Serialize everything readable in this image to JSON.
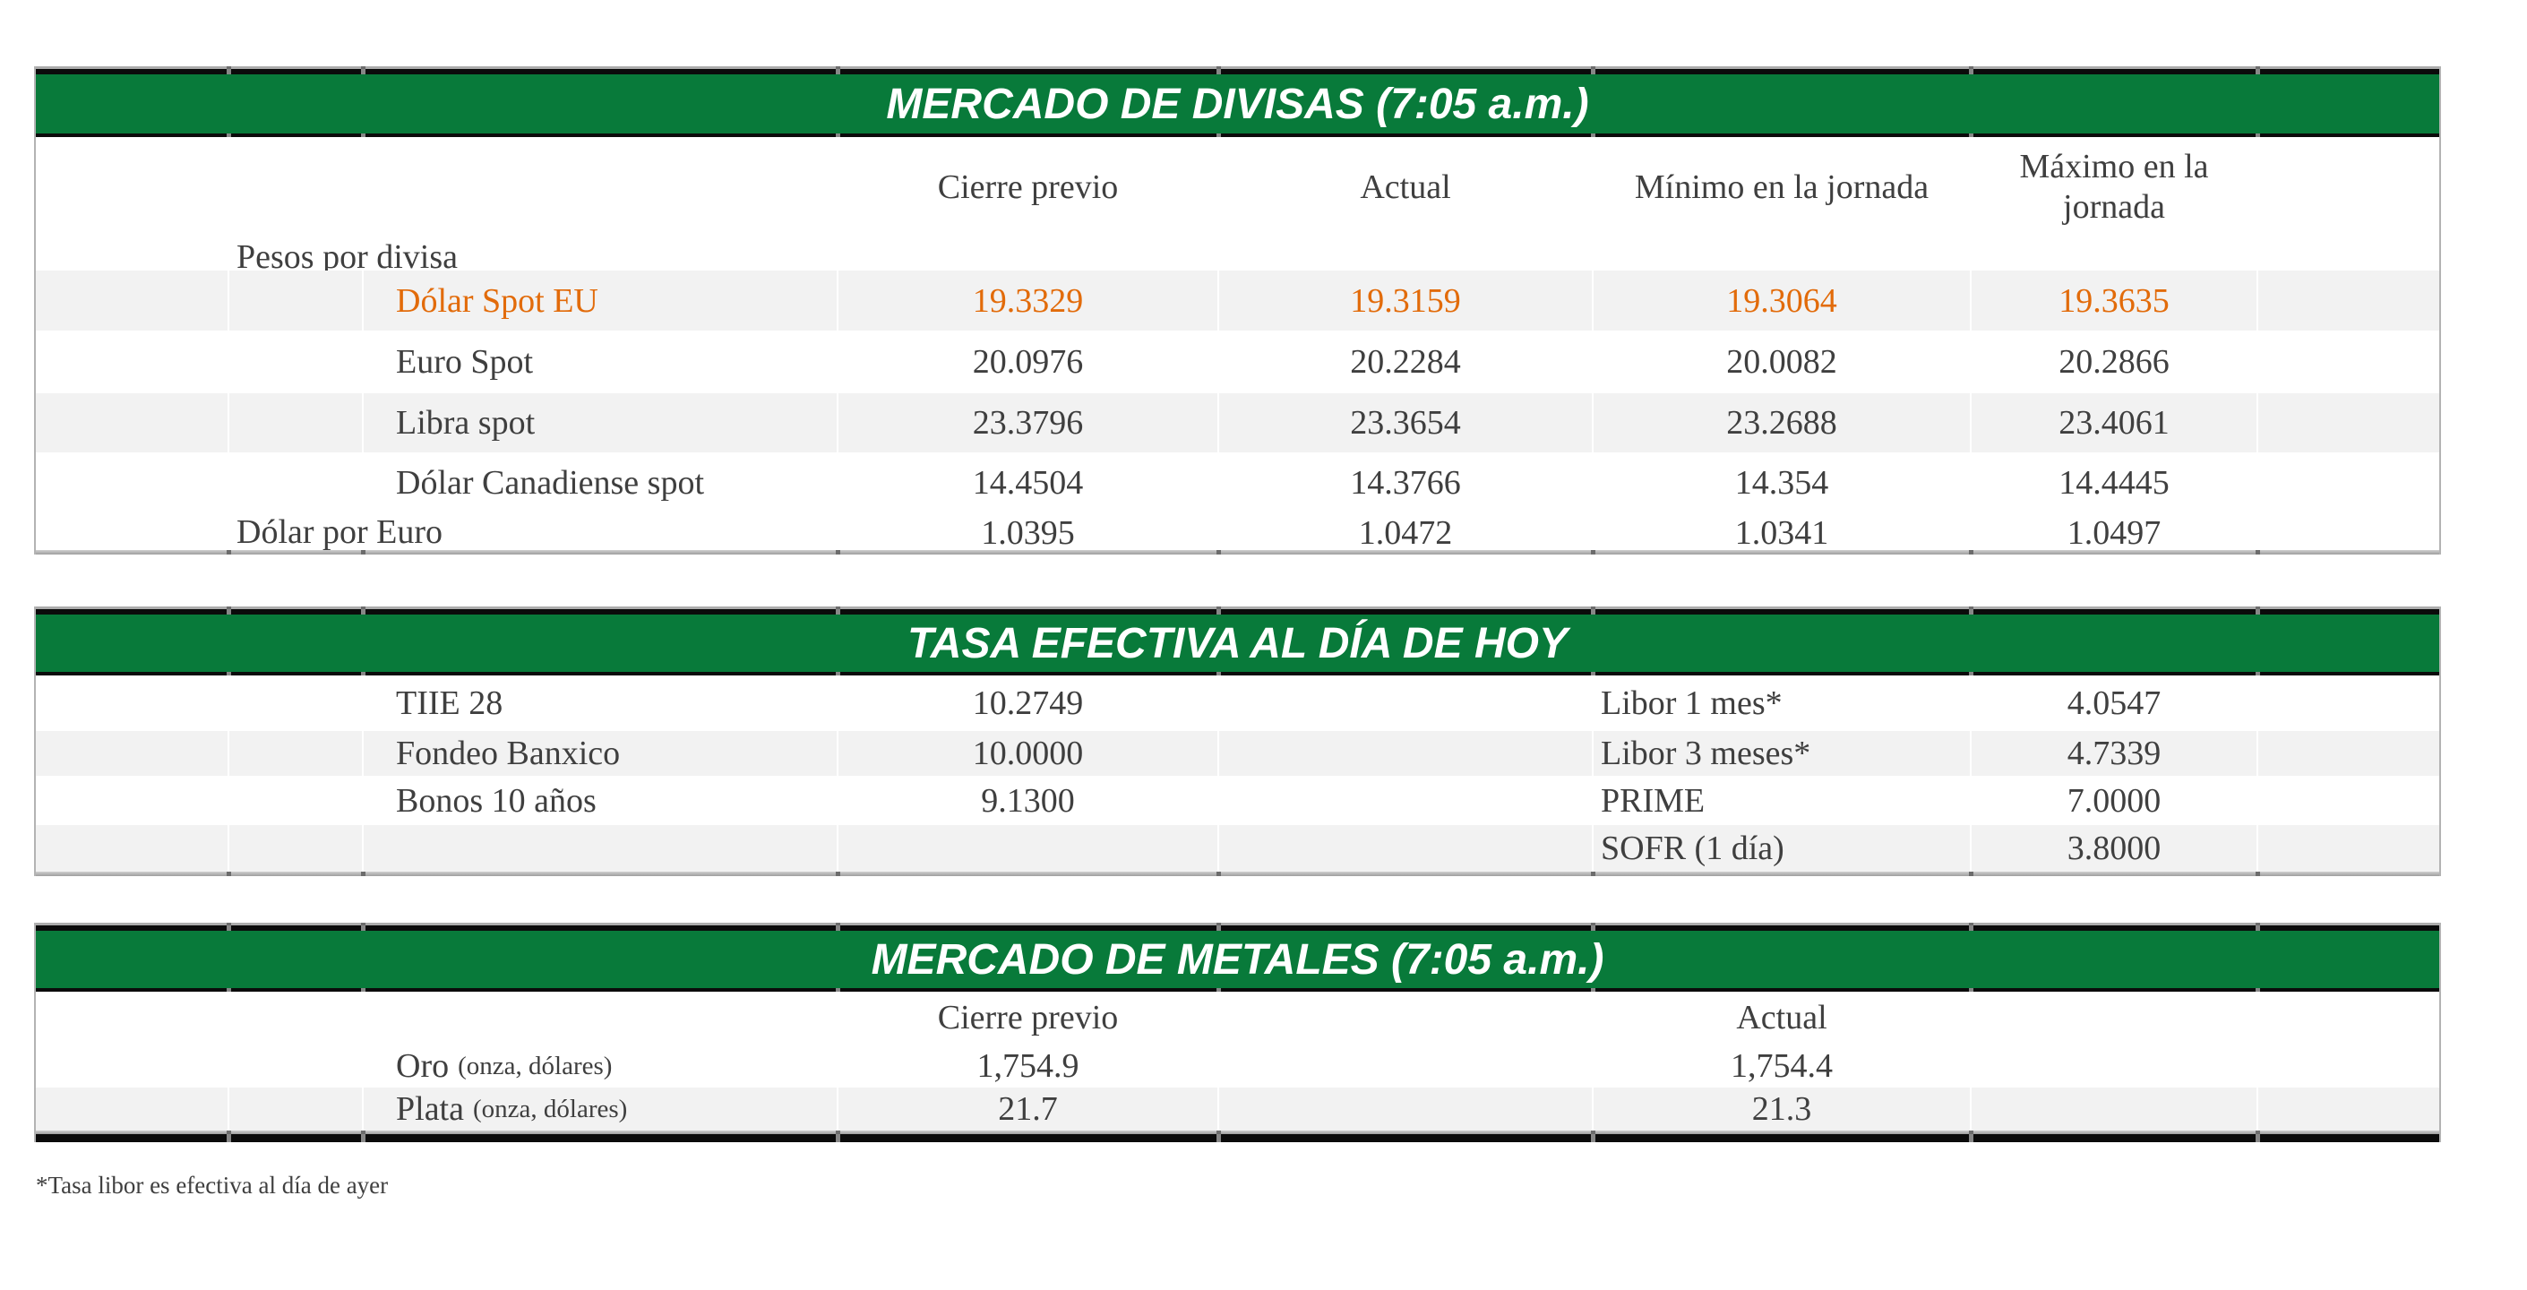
{
  "colors": {
    "header_green": "#087A3A",
    "highlight_orange": "#E26B0A",
    "row_stripe": "#F2F2F2",
    "text": "#3F3F3F"
  },
  "divisas": {
    "title": "MERCADO DE DIVISAS (7:05 a.m.)",
    "columns": [
      "Cierre previo",
      "Actual",
      "Mínimo en la jornada",
      "Máximo en la jornada"
    ],
    "group_label": "Pesos por divisa",
    "rows": [
      {
        "label": "Dólar Spot EU",
        "values": [
          "19.3329",
          "19.3159",
          "19.3064",
          "19.3635"
        ]
      },
      {
        "label": "Euro Spot",
        "values": [
          "20.0976",
          "20.2284",
          "20.0082",
          "20.2866"
        ]
      },
      {
        "label": "Libra spot",
        "values": [
          "23.3796",
          "23.3654",
          "23.2688",
          "23.4061"
        ]
      },
      {
        "label": "Dólar Canadiense spot",
        "values": [
          "14.4504",
          "14.3766",
          "14.354",
          "14.4445"
        ]
      },
      {
        "label": "Dólar por Euro",
        "values": [
          "1.0395",
          "1.0472",
          "1.0341",
          "1.0497"
        ]
      }
    ]
  },
  "tasas": {
    "title": "TASA EFECTIVA AL DÍA DE HOY",
    "rows": [
      {
        "left_label": "TIIE 28",
        "left_value": "10.2749",
        "right_label": "Libor 1 mes*",
        "right_value": "4.0547"
      },
      {
        "left_label": "Fondeo Banxico",
        "left_value": "10.0000",
        "right_label": "Libor 3 meses*",
        "right_value": "4.7339"
      },
      {
        "left_label": "Bonos 10 años",
        "left_value": "9.1300",
        "right_label": "PRIME",
        "right_value": "7.0000"
      },
      {
        "left_label": "",
        "left_value": "",
        "right_label": "SOFR (1 día)",
        "right_value": "3.8000"
      }
    ]
  },
  "metales": {
    "title": "MERCADO DE METALES (7:05 a.m.)",
    "columns": [
      "Cierre previo",
      "Actual"
    ],
    "rows": [
      {
        "label": "Oro",
        "label_note": "(onza, dólares)",
        "values": [
          "1,754.9",
          "1,754.4"
        ]
      },
      {
        "label": "Plata",
        "label_note": "(onza, dólares)",
        "values": [
          "21.7",
          "21.3"
        ]
      }
    ]
  },
  "footnote": "*Tasa libor es efectiva al día de ayer"
}
